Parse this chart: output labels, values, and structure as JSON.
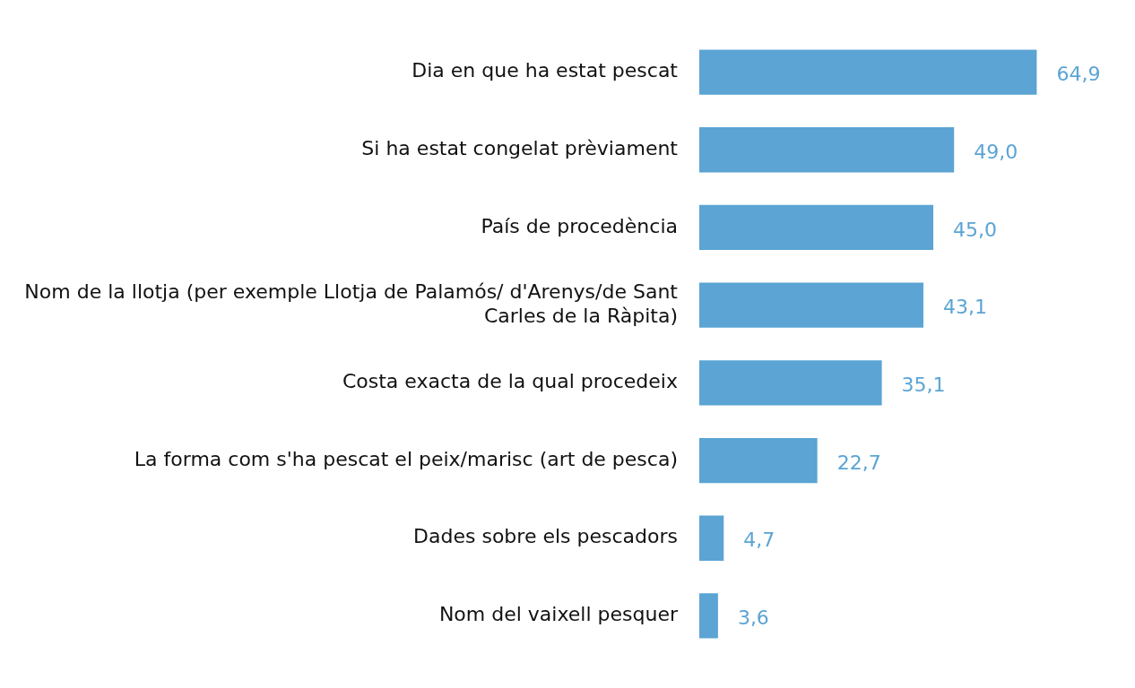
{
  "chart_data": {
    "type": "bar",
    "orientation": "horizontal",
    "categories": [
      "Dia en que ha estat pescat",
      "Si ha estat congelat prèviament",
      "País de procedència",
      "Nom de la llotja (per exemple Llotja de Palamós/ d'Arenys/de Sant Carles de la Ràpita)",
      "Costa exacta de la qual procedeix",
      "La forma com s'ha pescat el peix/marisc (art de pesca)",
      "Dades sobre els pescadors",
      "Nom del vaixell pesquer"
    ],
    "values": [
      64.9,
      49.0,
      45.0,
      43.1,
      35.1,
      22.7,
      4.7,
      3.6
    ],
    "value_labels": [
      "64,9",
      "49,0",
      "45,0",
      "43,1",
      "35,1",
      "22,7",
      "4,7",
      "3,6"
    ],
    "color": "#5ba4d4",
    "grid": false,
    "legend": false,
    "tick_labels": "y"
  }
}
